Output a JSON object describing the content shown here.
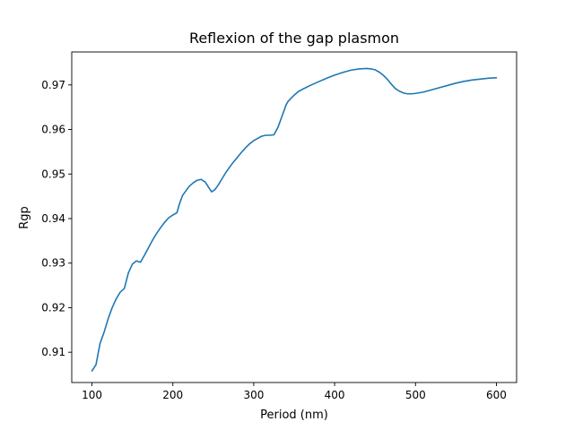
{
  "chart_data": {
    "type": "line",
    "title": "Reflexion of the gap plasmon",
    "xlabel": "Period (nm)",
    "ylabel": "Rgp",
    "xlim": [
      75,
      625
    ],
    "ylim": [
      0.9032,
      0.9774
    ],
    "xticks": [
      100,
      200,
      300,
      400,
      500,
      600
    ],
    "yticks": [
      0.91,
      0.92,
      0.93,
      0.94,
      0.95,
      0.96,
      0.97
    ],
    "ytick_labels": [
      "0.91",
      "0.92",
      "0.93",
      "0.94",
      "0.95",
      "0.96",
      "0.97"
    ],
    "grid": false,
    "line_color": "#1f77b4",
    "series": [
      {
        "x": [
          100,
          105,
          110,
          115,
          120,
          125,
          130,
          135,
          140,
          145,
          150,
          155,
          160,
          165,
          170,
          175,
          180,
          185,
          190,
          195,
          200,
          205,
          208,
          212,
          216,
          220,
          225,
          230,
          235,
          240,
          245,
          248,
          252,
          256,
          260,
          265,
          270,
          275,
          280,
          285,
          290,
          295,
          300,
          305,
          310,
          315,
          320,
          325,
          330,
          335,
          340,
          342,
          345,
          350,
          355,
          360,
          370,
          380,
          390,
          400,
          410,
          420,
          430,
          440,
          445,
          450,
          455,
          460,
          465,
          470,
          475,
          480,
          485,
          490,
          495,
          500,
          510,
          520,
          530,
          540,
          550,
          560,
          570,
          580,
          590,
          600
        ],
        "y": [
          0.9058,
          0.9072,
          0.912,
          0.9145,
          0.9175,
          0.92,
          0.922,
          0.9235,
          0.9243,
          0.9278,
          0.9298,
          0.9305,
          0.9302,
          0.9318,
          0.9335,
          0.9352,
          0.9367,
          0.938,
          0.9392,
          0.9402,
          0.9408,
          0.9413,
          0.9432,
          0.9452,
          0.9462,
          0.9472,
          0.948,
          0.9486,
          0.9488,
          0.9482,
          0.9468,
          0.946,
          0.9465,
          0.9475,
          0.9487,
          0.9502,
          0.9515,
          0.9527,
          0.9538,
          0.9549,
          0.9559,
          0.9568,
          0.9575,
          0.958,
          0.9585,
          0.9587,
          0.9587,
          0.9588,
          0.9605,
          0.963,
          0.9655,
          0.9662,
          0.9668,
          0.9677,
          0.9685,
          0.969,
          0.9699,
          0.9707,
          0.9715,
          0.9722,
          0.9728,
          0.9733,
          0.9736,
          0.9737,
          0.9736,
          0.9734,
          0.9729,
          0.9722,
          0.9713,
          0.9702,
          0.9692,
          0.9686,
          0.9682,
          0.968,
          0.968,
          0.9681,
          0.9684,
          0.9689,
          0.9694,
          0.9699,
          0.9704,
          0.9708,
          0.9711,
          0.9713,
          0.9715,
          0.9716
        ]
      }
    ]
  }
}
